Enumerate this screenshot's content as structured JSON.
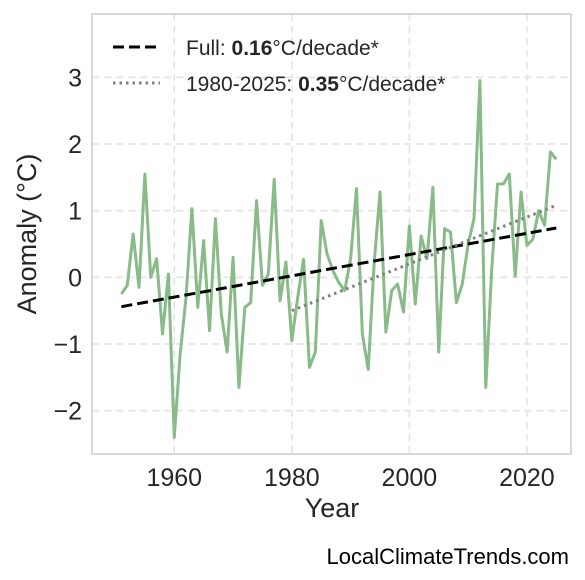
{
  "chart_data": {
    "type": "line",
    "xlabel": "Year",
    "ylabel": "Anomaly (°C)",
    "xlim": [
      1946,
      2027.5
    ],
    "ylim": [
      -2.65,
      3.95
    ],
    "xticks": [
      1960,
      1980,
      2000,
      2020
    ],
    "yticks": [
      -2,
      -1,
      0,
      1,
      2,
      3
    ],
    "grid": true,
    "legend_position": "top-left",
    "colors": {
      "series": "#88bb88",
      "full_trend": "#000000",
      "recent_trend": "#808080"
    },
    "series": [
      {
        "x": [
          1951,
          1952,
          1953,
          1954,
          1955,
          1956,
          1957,
          1958,
          1959,
          1960,
          1961,
          1962,
          1963,
          1964,
          1965,
          1966,
          1967,
          1968,
          1969,
          1970,
          1971,
          1972,
          1973,
          1974,
          1975,
          1976,
          1977,
          1978,
          1979,
          1980,
          1981,
          1982,
          1983,
          1984,
          1985,
          1986,
          1987,
          1988,
          1989,
          1990,
          1991,
          1992,
          1993,
          1994,
          1995,
          1996,
          1997,
          1998,
          1999,
          2000,
          2001,
          2002,
          2003,
          2004,
          2005,
          2006,
          2007,
          2008,
          2009,
          2010,
          2011,
          2012,
          2013,
          2014,
          2015,
          2016,
          2017,
          2018,
          2019,
          2020,
          2021,
          2022,
          2023,
          2024,
          2025
        ],
        "values": [
          -0.25,
          -0.12,
          0.65,
          -0.15,
          1.55,
          0.0,
          0.28,
          -0.85,
          0.05,
          -2.4,
          -1.15,
          -0.3,
          1.03,
          -0.45,
          0.55,
          -0.8,
          0.88,
          -0.55,
          -1.12,
          0.3,
          -1.65,
          -0.45,
          -0.38,
          1.15,
          -0.12,
          0.05,
          1.47,
          -0.35,
          0.23,
          -0.95,
          -0.3,
          0.27,
          -1.35,
          -1.12,
          0.85,
          0.35,
          0.1,
          -0.08,
          -0.2,
          0.28,
          1.33,
          -0.85,
          -1.38,
          0.2,
          1.28,
          -0.82,
          -0.2,
          -0.1,
          -0.52,
          0.77,
          -0.4,
          0.62,
          0.28,
          1.35,
          -1.12,
          0.73,
          0.68,
          -0.38,
          -0.1,
          0.5,
          0.88,
          2.95,
          -1.65,
          0.1,
          1.4,
          1.4,
          1.55,
          0.02,
          1.28,
          0.48,
          0.57,
          1.0,
          0.78,
          1.88,
          1.77
        ]
      }
    ],
    "trends": [
      {
        "label": "Full: ",
        "value": "0.16",
        "unit": "°C/decade*",
        "style": "dashed",
        "x": [
          1951,
          2025
        ],
        "y": [
          -0.44,
          0.74
        ]
      },
      {
        "label": "1980-2025: ",
        "value": "0.35",
        "unit": "°C/decade*",
        "style": "dotted",
        "x": [
          1980,
          2025
        ],
        "y": [
          -0.5,
          1.08
        ]
      }
    ]
  },
  "credit": "LocalClimateTrends.com"
}
